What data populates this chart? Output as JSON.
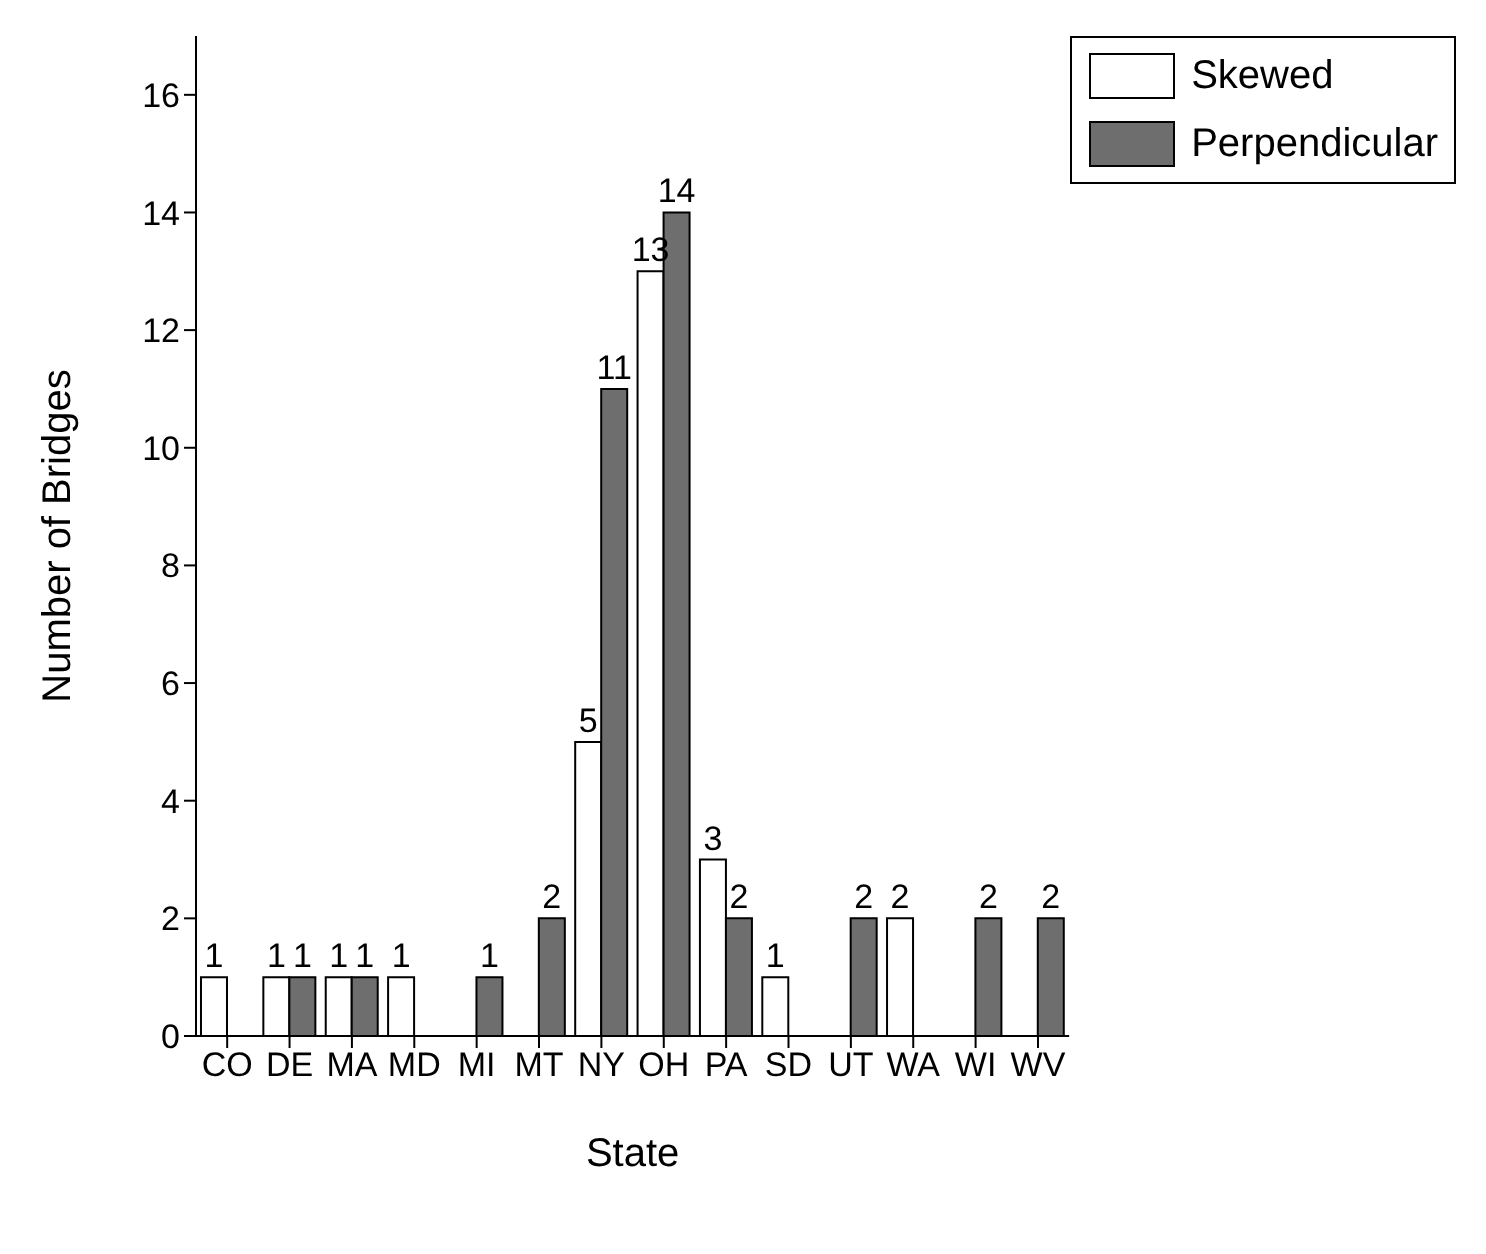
{
  "chart_data": {
    "type": "bar",
    "xlabel": "State",
    "ylabel": "Number of Bridges",
    "categories": [
      "CO",
      "DE",
      "MA",
      "MD",
      "MI",
      "MT",
      "NY",
      "OH",
      "PA",
      "SD",
      "UT",
      "WA",
      "WI",
      "WV"
    ],
    "series": [
      {
        "name": "Skewed",
        "color": "#ffffff",
        "values": [
          1,
          1,
          1,
          1,
          null,
          null,
          5,
          13,
          3,
          1,
          null,
          2,
          null,
          null
        ]
      },
      {
        "name": "Perpendicular",
        "color": "#6e6e6e",
        "values": [
          null,
          1,
          1,
          null,
          1,
          2,
          11,
          14,
          2,
          null,
          2,
          null,
          2,
          2
        ]
      }
    ],
    "ylim": [
      0,
      17
    ],
    "yticks": [
      0,
      2,
      4,
      6,
      8,
      10,
      12,
      14,
      16
    ],
    "data_labels": true,
    "legend": "top right",
    "grid": false
  }
}
